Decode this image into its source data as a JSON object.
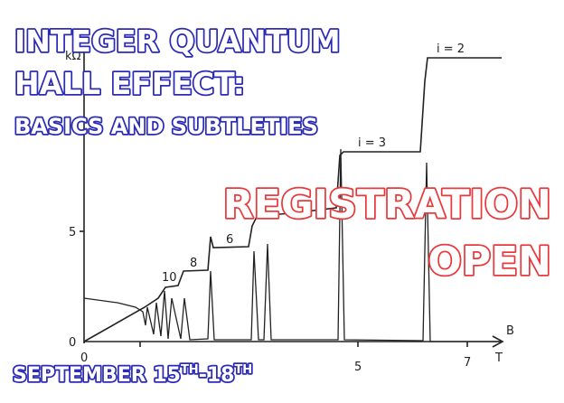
{
  "title": {
    "lines": [
      "INTEGER QUANTUM",
      "HALL EFFECT:",
      "BASICS AND SUBTLETIES"
    ]
  },
  "banner": {
    "lines": [
      "REGISTRATION",
      "OPEN"
    ]
  },
  "dates": {
    "start": "SEPTEMBER 15",
    "sup1": "TH",
    "end": "-18",
    "sup2": "TH"
  },
  "plot": {
    "y_unit": "kΩ",
    "y_ticks": [
      "5",
      "0"
    ],
    "x_ticks": [
      "0",
      "5",
      "7"
    ],
    "x_label": "B",
    "x_unit": "T",
    "plateau_labels": [
      "10",
      "8",
      "6",
      "i = 3",
      "i = 2"
    ]
  }
}
